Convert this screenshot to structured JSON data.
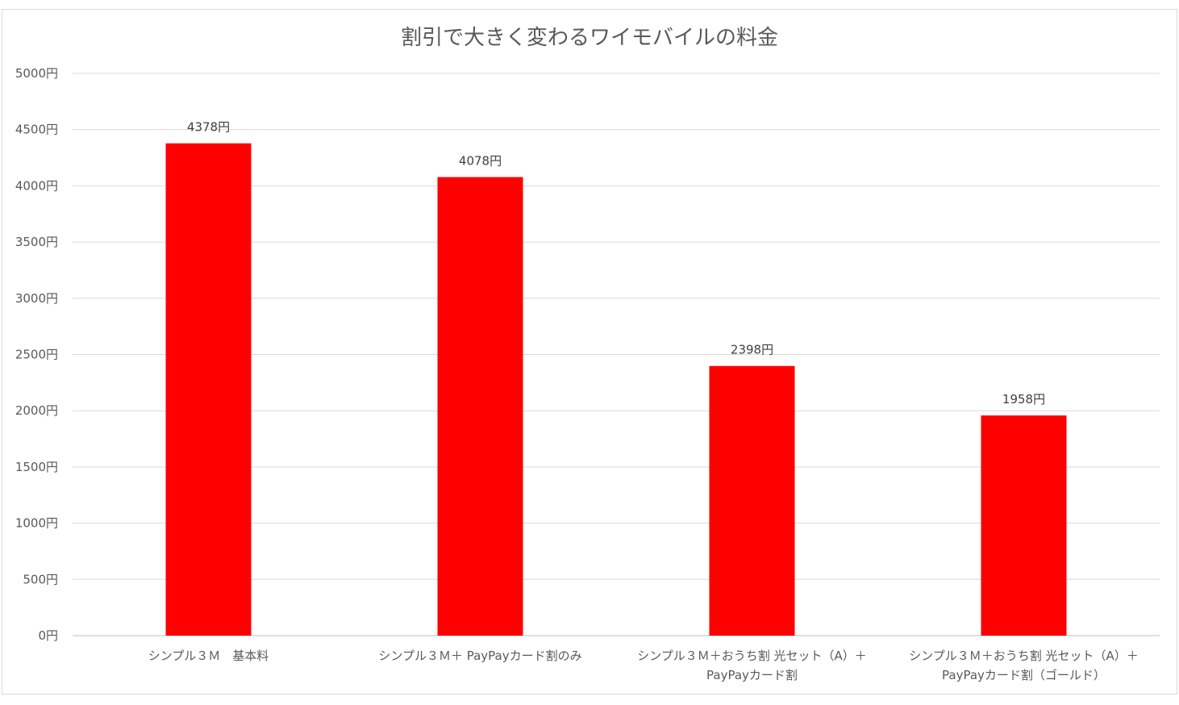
{
  "chart_data": {
    "type": "bar",
    "title": "割引で大きく変わるワイモバイルの料金",
    "xlabel": "",
    "ylabel": "",
    "categories": [
      [
        "シンプル３Ｍ　基本料"
      ],
      [
        "シンプル３Ｍ＋ PayPayカード割のみ"
      ],
      [
        "シンプル３Ｍ＋おうち割 光セット（A）＋",
        "PayPayカード割"
      ],
      [
        "シンプル３Ｍ＋おうち割 光セット（A）＋",
        "PayPayカード割（ゴールド）"
      ]
    ],
    "values": [
      4378,
      4078,
      2398,
      1958
    ],
    "data_labels": [
      "4378円",
      "4078円",
      "2398円",
      "1958円"
    ],
    "yticks": [
      "0円",
      "500円",
      "1000円",
      "1500円",
      "2000円",
      "2500円",
      "3000円",
      "3500円",
      "4000円",
      "4500円",
      "5000円"
    ],
    "ylim": [
      0,
      5000
    ],
    "grid": true,
    "legend": "none",
    "bar_color": "#ff0000"
  }
}
